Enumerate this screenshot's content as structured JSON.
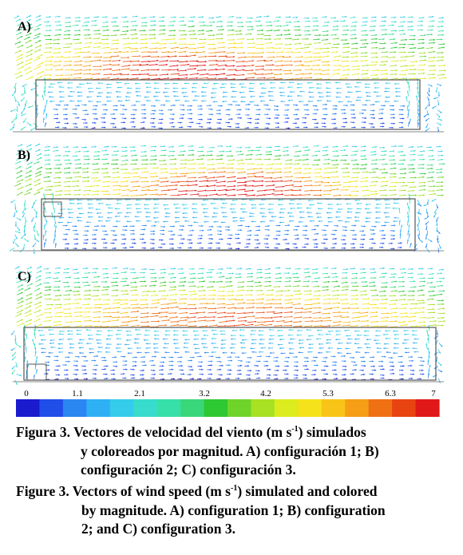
{
  "panels": [
    {
      "label": "A)"
    },
    {
      "label": "B)"
    },
    {
      "label": "C)"
    }
  ],
  "colorbar": {
    "ticks": [
      "0",
      "1.1",
      "2.1",
      "3.2",
      "4.2",
      "5.3",
      "6.3",
      "7"
    ],
    "min": 0,
    "max": 7,
    "unit": "m s-1",
    "colors": [
      "#1a1acf",
      "#1f4ee8",
      "#2a86f0",
      "#2fb0f4",
      "#34ccea",
      "#38dccd",
      "#36e0a8",
      "#3ad67a",
      "#2ec832",
      "#6fd42a",
      "#a8e024",
      "#dcec1e",
      "#f6e21a",
      "#f8c418",
      "#f69e16",
      "#f07014",
      "#e84412",
      "#e01818"
    ]
  },
  "caption_es": {
    "line1_pre": "Figura 3. Vectores de velocidad del viento (m s",
    "line1_sup": "-1",
    "line1_post": ") simulados",
    "line2": "y coloreados por magnitud. A) configuración 1; B)",
    "line3": "configuración 2; C) configuración 3."
  },
  "caption_en": {
    "line1_pre": "Figure 3. Vectors of wind speed (m s",
    "line1_sup": "-1",
    "line1_post": ") simulated and colored",
    "line2": "by magnitude. A) configuration 1; B) configuration",
    "line3": "2; and C) configuration 3."
  }
}
